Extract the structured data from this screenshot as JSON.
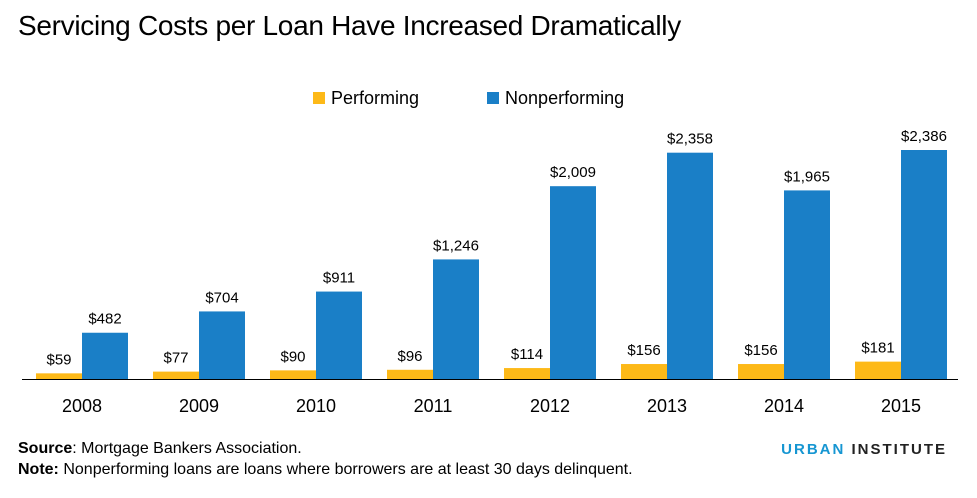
{
  "title": "Servicing Costs per Loan Have Increased Dramatically",
  "colors": {
    "performing": "#fdb918",
    "nonperforming": "#1a7fc7",
    "axis": "#000000"
  },
  "chart_data": {
    "type": "bar",
    "categories": [
      "2008",
      "2009",
      "2010",
      "2011",
      "2012",
      "2013",
      "2014",
      "2015"
    ],
    "series": [
      {
        "name": "Performing",
        "values": [
          59,
          77,
          90,
          96,
          114,
          156,
          156,
          181
        ],
        "labels": [
          "$59",
          "$77",
          "$90",
          "$96",
          "$114",
          "$156",
          "$156",
          "$181"
        ]
      },
      {
        "name": "Nonperforming",
        "values": [
          482,
          704,
          911,
          1246,
          2009,
          2358,
          1965,
          2386
        ],
        "labels": [
          "$482",
          "$704",
          "$911",
          "$1,246",
          "$2,009",
          "$2,358",
          "$1,965",
          "$2,386"
        ]
      }
    ],
    "legend_position": "top-center",
    "grid": false,
    "ylim": [
      0,
      2386
    ]
  },
  "footer": {
    "source_label": "Source",
    "source_text": ": Mortgage Bankers Association.",
    "note_label": "Note:",
    "note_text": " Nonperforming loans are loans where borrowers are at least 30 days delinquent.",
    "brand_primary": "URBAN",
    "brand_secondary": " INSTITUTE"
  }
}
